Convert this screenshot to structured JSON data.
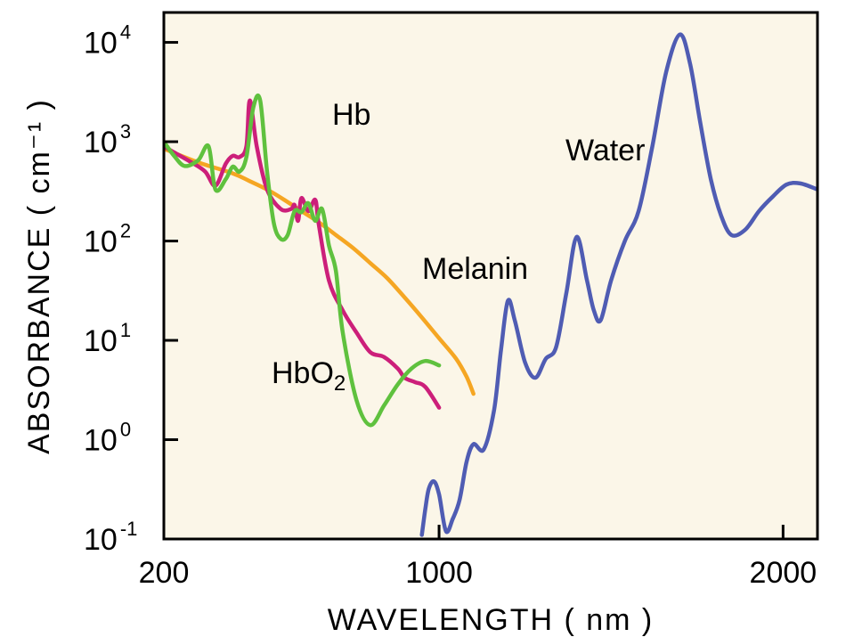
{
  "chart_data": {
    "type": "line",
    "xlabel": "WAVELENGTH ( nm )",
    "ylabel": "ABSORBANCE ( cm⁻¹ )",
    "x_scale": "linear",
    "y_scale": "log",
    "xlim": [
      200,
      2100
    ],
    "ylim": [
      0.1,
      20000
    ],
    "x_ticks": [
      {
        "value": 200,
        "label": "200"
      },
      {
        "value": 1000,
        "label": "1000"
      },
      {
        "value": 2000,
        "label": "2000"
      }
    ],
    "y_ticks": [
      {
        "value": 0.1,
        "base": "10",
        "exp": "-1"
      },
      {
        "value": 1,
        "base": "10",
        "exp": "0"
      },
      {
        "value": 10,
        "base": "10",
        "exp": "1"
      },
      {
        "value": 100,
        "base": "10",
        "exp": "2"
      },
      {
        "value": 1000,
        "base": "10",
        "exp": "3"
      },
      {
        "value": 10000,
        "base": "10",
        "exp": "4"
      }
    ],
    "background": "#fbf6e8",
    "series": [
      {
        "name": "Melanin",
        "color": "#f5a623",
        "x": [
          200,
          300,
          400,
          450,
          500,
          550,
          600,
          650,
          700,
          750,
          800,
          850,
          900,
          950,
          1000,
          1050,
          1080,
          1100
        ],
        "y": [
          850,
          620,
          480,
          400,
          330,
          260,
          200,
          155,
          115,
          85,
          60,
          42,
          27,
          17,
          10.5,
          6.5,
          4.3,
          2.9
        ]
      },
      {
        "name": "Hb",
        "color": "#cc1f7a",
        "x": [
          200,
          230,
          280,
          320,
          350,
          380,
          400,
          420,
          440,
          450,
          470,
          500,
          540,
          570,
          580,
          590,
          600,
          620,
          640,
          650,
          680,
          720,
          760,
          800,
          840,
          880,
          900,
          930,
          960,
          1000
        ],
        "y": [
          900,
          780,
          620,
          500,
          360,
          600,
          720,
          700,
          900,
          2600,
          900,
          330,
          210,
          210,
          230,
          160,
          270,
          200,
          260,
          150,
          40,
          20,
          12,
          7.6,
          6.8,
          5.2,
          4.2,
          3.8,
          3.4,
          2.1
        ]
      },
      {
        "name": "HbO₂",
        "color": "#5fc13e",
        "x": [
          200,
          230,
          260,
          300,
          330,
          350,
          380,
          400,
          420,
          440,
          460,
          480,
          500,
          520,
          540,
          560,
          580,
          600,
          620,
          640,
          660,
          680,
          700,
          720,
          760,
          800,
          840,
          880,
          920,
          960,
          1000
        ],
        "y": [
          1000,
          720,
          570,
          650,
          900,
          330,
          420,
          560,
          500,
          700,
          2200,
          2600,
          500,
          150,
          105,
          115,
          200,
          195,
          240,
          160,
          210,
          90,
          50,
          12,
          2.5,
          1.4,
          2.2,
          3.6,
          5.2,
          6.2,
          5.6
        ]
      },
      {
        "name": "Water",
        "color": "#4f5cb3",
        "x": [
          950,
          960,
          970,
          985,
          1000,
          1020,
          1040,
          1060,
          1080,
          1100,
          1130,
          1160,
          1180,
          1200,
          1220,
          1250,
          1280,
          1310,
          1340,
          1370,
          1400,
          1430,
          1450,
          1470,
          1500,
          1540,
          1580,
          1620,
          1660,
          1700,
          1730,
          1760,
          1790,
          1820,
          1850,
          1890,
          1930,
          1970,
          2010,
          2050,
          2100
        ],
        "y": [
          0.11,
          0.2,
          0.32,
          0.38,
          0.28,
          0.12,
          0.16,
          0.25,
          0.6,
          0.9,
          0.8,
          2.0,
          8.0,
          25,
          16,
          6.0,
          4.2,
          6.5,
          8.5,
          30,
          110,
          40,
          20,
          16,
          40,
          100,
          200,
          900,
          5000,
          12000,
          6000,
          1500,
          420,
          180,
          115,
          130,
          200,
          280,
          370,
          380,
          330
        ]
      }
    ]
  },
  "annotations": {
    "hb": "Hb",
    "water": "Water",
    "melanin": "Melanin",
    "hbo2_base": "HbO",
    "hbo2_sub": "2"
  }
}
